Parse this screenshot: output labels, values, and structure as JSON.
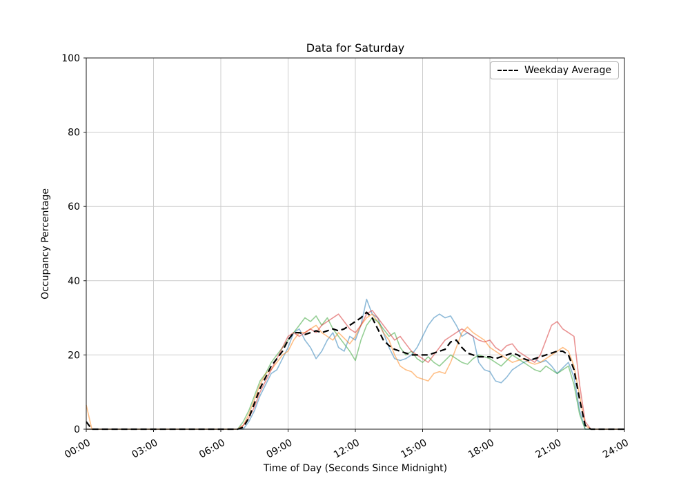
{
  "chart_data": {
    "type": "line",
    "title": "Data for Saturday",
    "xlabel": "Time of Day (Seconds Since Midnight)",
    "ylabel": "Occupancy Percentage",
    "xlim": [
      0,
      24
    ],
    "ylim": [
      0,
      100
    ],
    "grid": true,
    "legend_position": "upper right",
    "x_start_hour": 0,
    "x_step_hours": 0.25,
    "x_ticks": [
      {
        "hour": 0,
        "label": "00:00"
      },
      {
        "hour": 3,
        "label": "03:00"
      },
      {
        "hour": 6,
        "label": "06:00"
      },
      {
        "hour": 9,
        "label": "09:00"
      },
      {
        "hour": 12,
        "label": "12:00"
      },
      {
        "hour": 15,
        "label": "15:00"
      },
      {
        "hour": 18,
        "label": "18:00"
      },
      {
        "hour": 21,
        "label": "21:00"
      },
      {
        "hour": 24,
        "label": "24:00"
      }
    ],
    "y_ticks": [
      {
        "value": 0,
        "label": "0"
      },
      {
        "value": 20,
        "label": "20"
      },
      {
        "value": 40,
        "label": "40"
      },
      {
        "value": 60,
        "label": "60"
      },
      {
        "value": 80,
        "label": "80"
      },
      {
        "value": 100,
        "label": "100"
      }
    ],
    "series": [
      {
        "id": "line-1",
        "label": "",
        "color": "#1f77b4",
        "alpha": 0.5,
        "width": 1.6,
        "dash": "solid",
        "values": [
          0,
          0,
          0,
          0,
          0,
          0,
          0,
          0,
          0,
          0,
          0,
          0,
          0,
          0,
          0,
          0,
          0,
          0,
          0,
          0,
          0,
          0,
          0,
          0,
          0,
          0,
          0,
          0,
          0,
          2,
          5,
          9,
          12,
          15,
          16,
          19,
          22,
          26,
          27,
          24,
          22,
          19,
          21,
          24,
          26,
          22,
          21,
          25,
          24,
          28,
          35,
          31,
          30,
          26,
          22,
          19,
          18.5,
          19,
          20,
          22,
          25,
          28,
          30,
          31,
          30,
          30.5,
          28,
          25,
          26,
          25,
          18,
          16,
          15.5,
          13,
          12.5,
          14,
          16,
          17,
          18,
          18.5,
          19,
          18,
          18.5,
          17,
          15,
          16.5,
          18,
          14,
          5,
          0,
          0,
          0,
          0,
          0,
          0,
          0,
          0
        ]
      },
      {
        "id": "line-2",
        "label": "",
        "color": "#ff7f0e",
        "alpha": 0.5,
        "width": 1.6,
        "dash": "solid",
        "values": [
          6.5,
          0,
          0,
          0,
          0,
          0,
          0,
          0,
          0,
          0,
          0,
          0,
          0,
          0,
          0,
          0,
          0,
          0,
          0,
          0,
          0,
          0,
          0,
          0,
          0,
          0,
          0,
          0,
          1,
          4,
          8,
          12,
          15,
          16,
          18,
          20,
          21,
          24,
          26,
          26,
          27,
          28,
          26,
          25,
          24,
          26,
          24.5,
          23,
          25,
          28,
          30,
          31,
          29,
          26,
          24,
          20,
          17,
          16,
          15.5,
          14,
          13.5,
          13,
          15,
          15.5,
          15,
          18,
          22,
          26,
          27.5,
          26,
          25,
          24,
          22,
          21,
          20,
          19,
          18,
          18.5,
          19,
          18,
          17.5,
          18,
          19,
          20,
          21,
          22,
          21,
          17,
          9,
          1,
          0,
          0,
          0,
          0,
          0,
          0,
          0
        ]
      },
      {
        "id": "line-3",
        "label": "",
        "color": "#2ca02c",
        "alpha": 0.5,
        "width": 1.6,
        "dash": "solid",
        "values": [
          0,
          0,
          0,
          0,
          0,
          0,
          0,
          0,
          0,
          0,
          0,
          0,
          0,
          0,
          0,
          0,
          0,
          0,
          0,
          0,
          0,
          0,
          0,
          0,
          0,
          0,
          0,
          0,
          2,
          5,
          9,
          13,
          15,
          18,
          20,
          22,
          24,
          26,
          28,
          30,
          29,
          30.5,
          28,
          30,
          27,
          25,
          23,
          21,
          18.5,
          24,
          28,
          30,
          29,
          27,
          25,
          26,
          22,
          20,
          21,
          19,
          18,
          19.5,
          18,
          17,
          18.5,
          20,
          19,
          18,
          17.5,
          19,
          20,
          19.5,
          19,
          18,
          17,
          18.5,
          20,
          19,
          18,
          17,
          16,
          15.5,
          17,
          16,
          15,
          16,
          17,
          12,
          4,
          0,
          0,
          0,
          0,
          0,
          0,
          0,
          0
        ]
      },
      {
        "id": "line-4",
        "label": "",
        "color": "#d62728",
        "alpha": 0.5,
        "width": 1.6,
        "dash": "solid",
        "values": [
          0,
          0,
          0,
          0,
          0,
          0,
          0,
          0,
          0,
          0,
          0,
          0,
          0,
          0,
          0,
          0,
          0,
          0,
          0,
          0,
          0,
          0,
          0,
          0,
          0,
          0,
          0,
          0,
          1,
          3,
          6,
          10,
          13,
          16,
          19,
          22,
          25,
          26,
          25,
          26,
          27,
          26,
          28,
          29,
          30,
          31,
          29,
          27,
          26,
          28,
          31,
          32,
          30,
          28,
          26,
          24,
          25,
          23,
          21,
          20,
          19,
          18,
          20,
          22,
          24,
          25,
          26,
          27,
          26,
          25,
          24,
          23.5,
          24,
          22,
          21,
          22.5,
          23,
          21,
          20,
          19,
          18,
          20,
          24,
          28,
          29,
          27,
          26,
          25,
          12,
          2,
          0,
          0,
          0,
          0,
          0,
          0,
          0
        ]
      },
      {
        "id": "weekday-average",
        "label": "Weekday Average",
        "color": "#000000",
        "alpha": 1,
        "width": 2.2,
        "dash": "dashed",
        "values": [
          2,
          0,
          0,
          0,
          0,
          0,
          0,
          0,
          0,
          0,
          0,
          0,
          0,
          0,
          0,
          0,
          0,
          0,
          0,
          0,
          0,
          0,
          0,
          0,
          0,
          0,
          0,
          0,
          0.5,
          3,
          7,
          11,
          14,
          17,
          19,
          21,
          24,
          26,
          26,
          25.5,
          26,
          26.5,
          26,
          26.5,
          27,
          26.5,
          27,
          28,
          29,
          30,
          31.5,
          30,
          27,
          24,
          22.5,
          21.5,
          21,
          20.5,
          20,
          20,
          20,
          20,
          20.5,
          21,
          21.5,
          23.5,
          24,
          22,
          20.5,
          20,
          19.5,
          19.5,
          19.5,
          19,
          19.5,
          20,
          20.5,
          20,
          19,
          18.5,
          19,
          19.5,
          20,
          20.5,
          21,
          21,
          20,
          16,
          8,
          1,
          0,
          0,
          0,
          0,
          0,
          0,
          0
        ]
      }
    ]
  }
}
